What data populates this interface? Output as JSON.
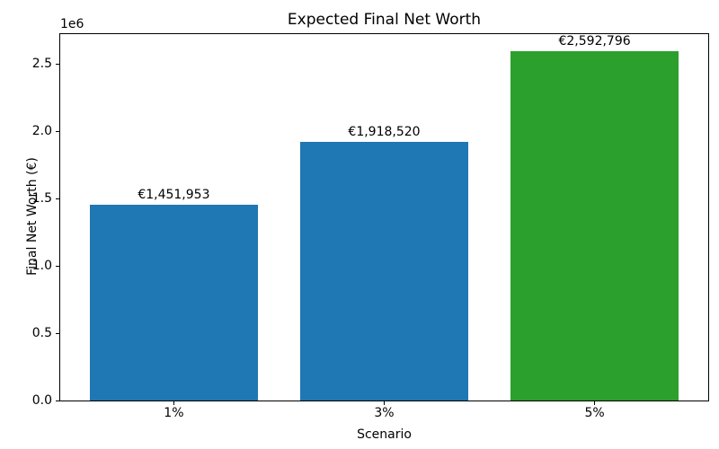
{
  "figure": {
    "background": "#ffffff"
  },
  "chart_data": {
    "type": "bar",
    "title": "Expected Final Net Worth",
    "xlabel": "Scenario",
    "ylabel": "Final Net Worth (€)",
    "categories": [
      "1%",
      "3%",
      "5%"
    ],
    "values": [
      1451953,
      1918520,
      2592796
    ],
    "bar_labels": [
      "€1,451,953",
      "€1,918,520",
      "€2,592,796"
    ],
    "bar_colors": [
      "#1f77b4",
      "#1f77b4",
      "#2ca02c"
    ],
    "ylim": [
      0,
      2722436
    ],
    "yticks": [
      0,
      500000,
      1000000,
      1500000,
      2000000,
      2500000
    ],
    "ytick_labels": [
      "0.0",
      "0.5",
      "1.0",
      "1.5",
      "2.0",
      "2.5"
    ],
    "y_offset_text": "1e6",
    "xlim": [
      -0.54,
      2.54
    ],
    "bar_width_fraction": 0.8,
    "grid": false,
    "legend_position": "none"
  }
}
